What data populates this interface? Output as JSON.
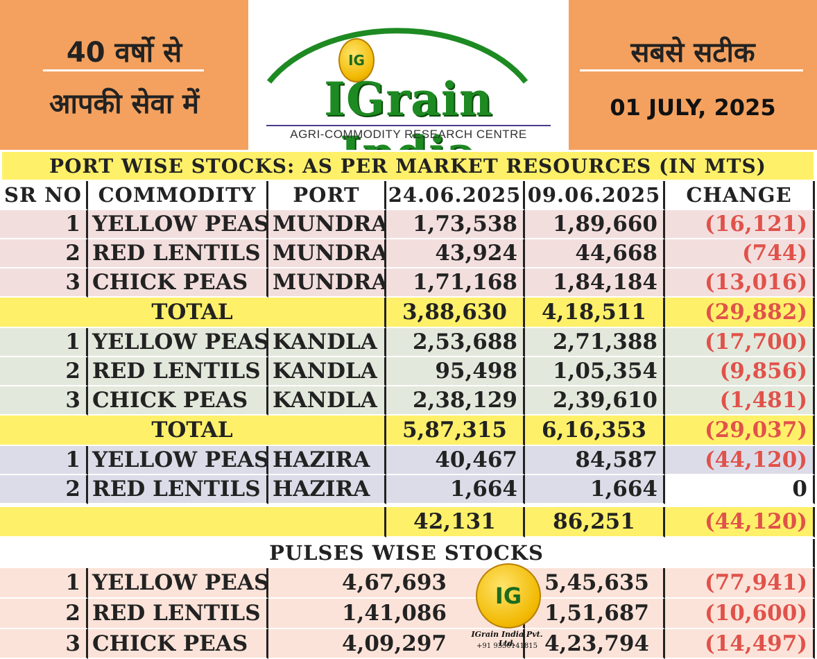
{
  "header": {
    "left_line1": "40 वर्षो से",
    "left_line2": "आपकी सेवा में",
    "right_line1": "सबसे सटीक",
    "date": "01 JULY, 2025",
    "logo_badge": "IG",
    "logo_title": "IGrain India",
    "logo_subtitle": "AGRI-COMMODITY RESEARCH CENTRE"
  },
  "table": {
    "title": "PORT WISE STOCKS: AS PER MARKET RESOURCES (IN MTS)",
    "columns": [
      "SR NO",
      "COMMODITY",
      "PORT",
      "24.06.2025",
      "09.06.2025",
      "CHANGE"
    ],
    "mundra": [
      {
        "sr": "1",
        "commodity": "YELLOW PEAS",
        "port": "MUNDRA",
        "d1": "1,73,538",
        "d2": "1,89,660",
        "change": "(16,121)"
      },
      {
        "sr": "2",
        "commodity": "RED LENTILS",
        "port": "MUNDRA",
        "d1": "43,924",
        "d2": "44,668",
        "change": "(744)"
      },
      {
        "sr": "3",
        "commodity": "CHICK PEAS",
        "port": "MUNDRA",
        "d1": "1,71,168",
        "d2": "1,84,184",
        "change": "(13,016)"
      }
    ],
    "mundra_total": {
      "label": "TOTAL",
      "d1": "3,88,630",
      "d2": "4,18,511",
      "change": "(29,882)"
    },
    "kandla": [
      {
        "sr": "1",
        "commodity": "YELLOW PEAS",
        "port": "KANDLA",
        "d1": "2,53,688",
        "d2": "2,71,388",
        "change": "(17,700)"
      },
      {
        "sr": "2",
        "commodity": "RED LENTILS",
        "port": "KANDLA",
        "d1": "95,498",
        "d2": "1,05,354",
        "change": "(9,856)"
      },
      {
        "sr": "3",
        "commodity": "CHICK PEAS",
        "port": "KANDLA",
        "d1": "2,38,129",
        "d2": "2,39,610",
        "change": "(1,481)"
      }
    ],
    "kandla_total": {
      "label": "TOTAL",
      "d1": "5,87,315",
      "d2": "6,16,353",
      "change": "(29,037)"
    },
    "hazira": [
      {
        "sr": "1",
        "commodity": "YELLOW PEAS",
        "port": "HAZIRA",
        "d1": "40,467",
        "d2": "84,587",
        "change": "(44,120)"
      },
      {
        "sr": "2",
        "commodity": "RED LENTILS",
        "port": "HAZIRA",
        "d1": "1,664",
        "d2": "1,664",
        "change": "0"
      }
    ],
    "hazira_total": {
      "label": "",
      "d1": "42,131",
      "d2": "86,251",
      "change": "(44,120)"
    },
    "pulses_title": "PULSES WISE STOCKS",
    "pulses": [
      {
        "sr": "1",
        "commodity": "YELLOW PEAS",
        "d1": "4,67,693",
        "d2": "5,45,635",
        "change": "(77,941)"
      },
      {
        "sr": "2",
        "commodity": "RED LENTILS",
        "d1": "1,41,086",
        "d2": "1,51,687",
        "change": "(10,600)"
      },
      {
        "sr": "3",
        "commodity": "CHICK PEAS",
        "d1": "4,09,297",
        "d2": "4,23,794",
        "change": "(14,497)"
      }
    ]
  },
  "watermark": {
    "badge": "IG",
    "company": "IGrain India Pvt. Ltd.",
    "phone": "+91 9350141815"
  },
  "colors": {
    "header_orange": "#f4a15f",
    "brand_green": "#1d8a22",
    "total_yellow": "#fff069",
    "negative_red": "#e0524a"
  }
}
